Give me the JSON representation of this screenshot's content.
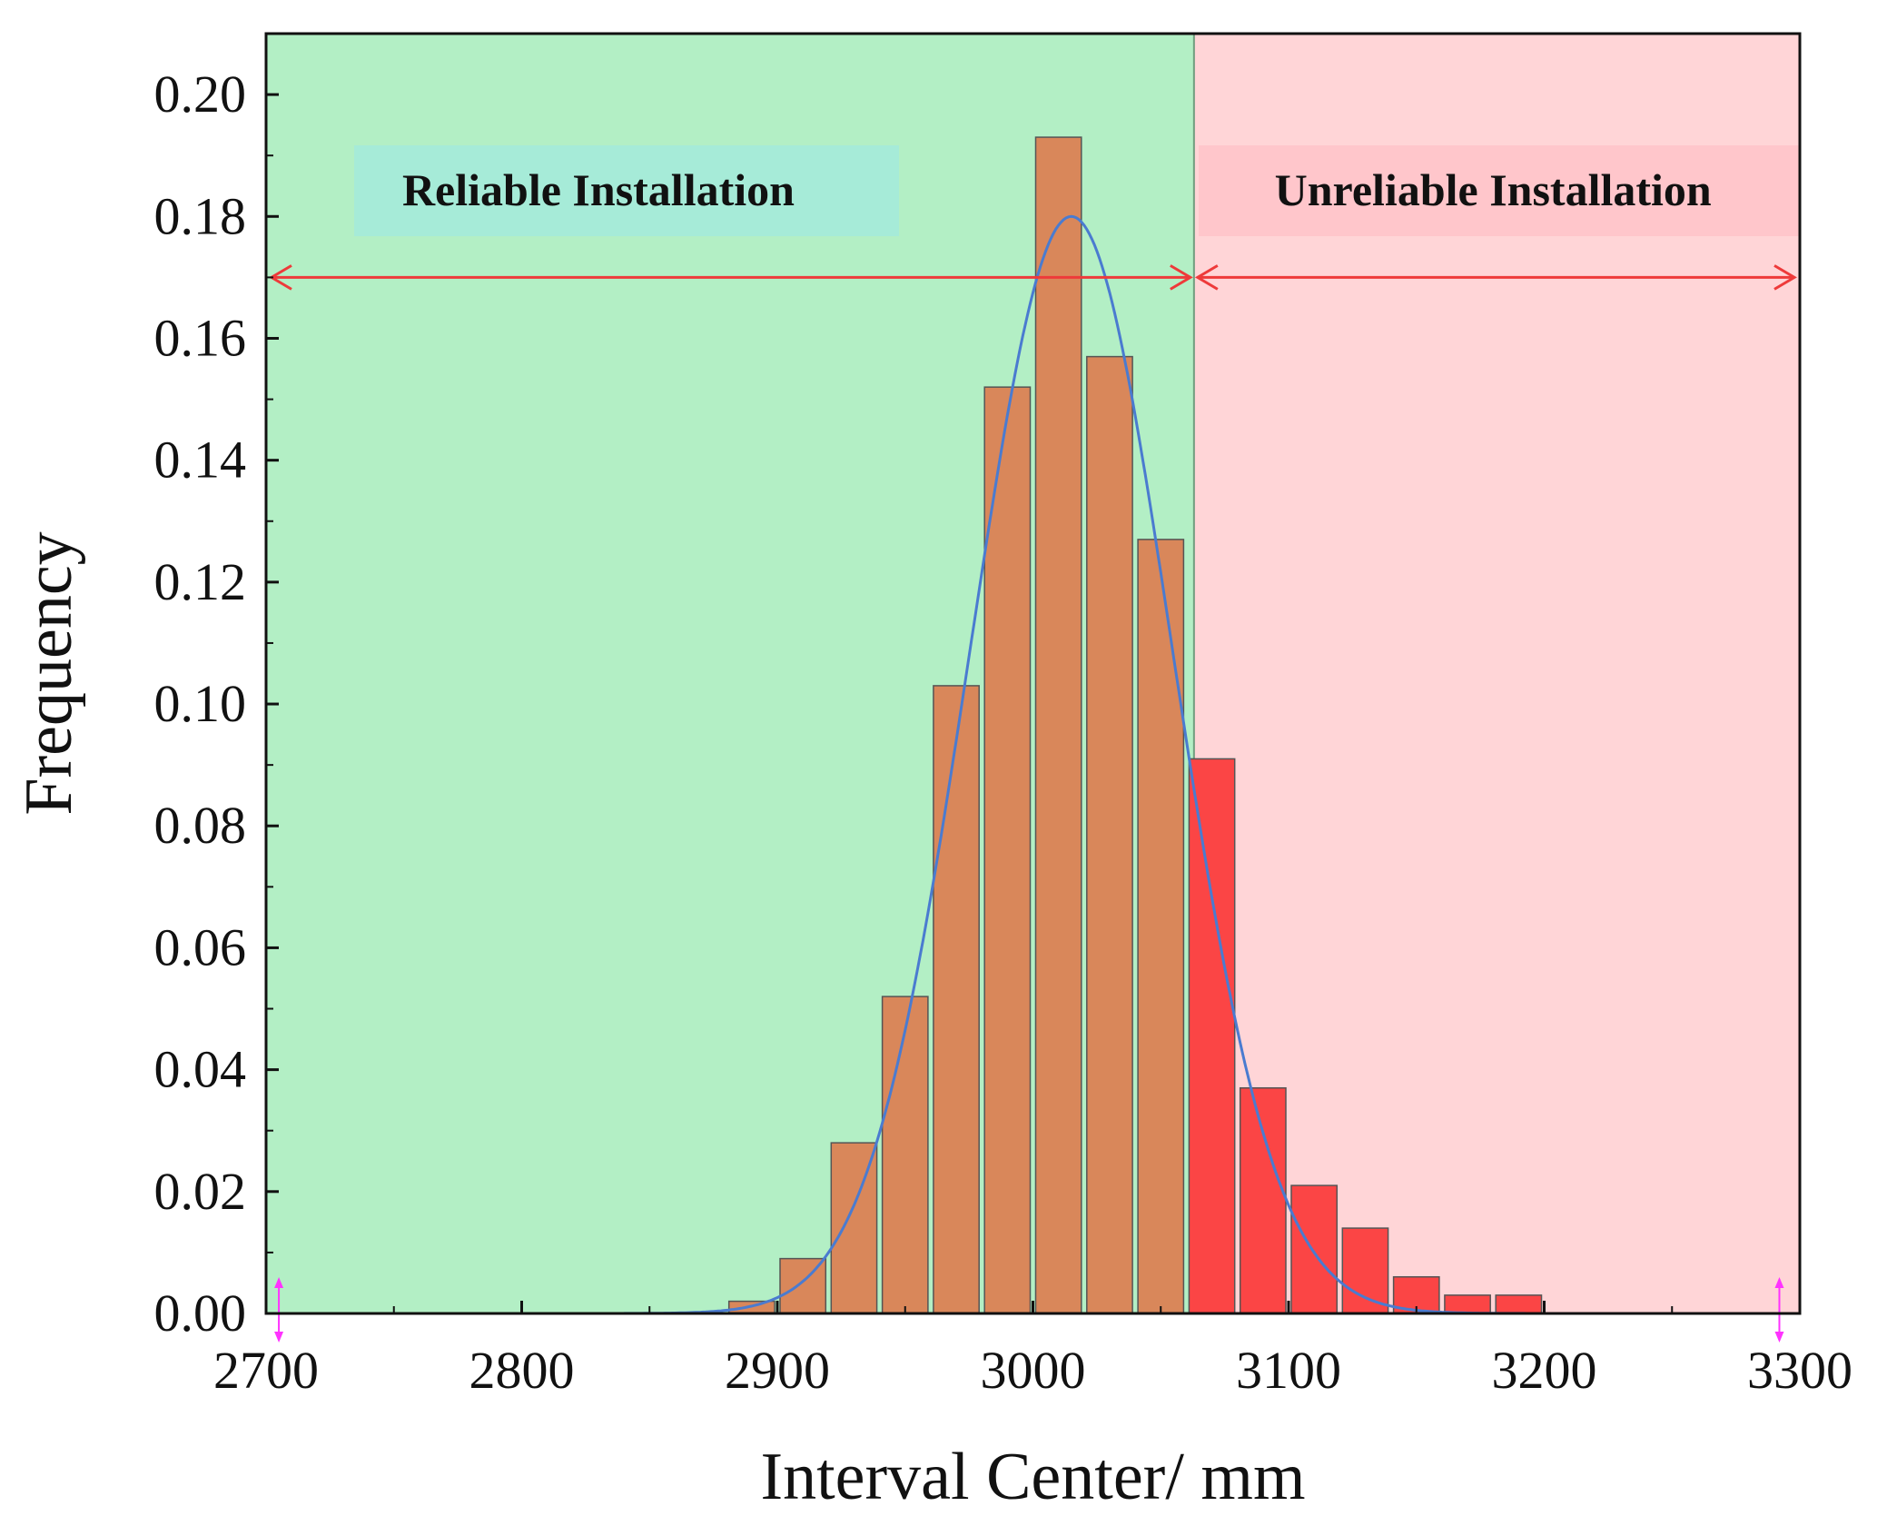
{
  "chart_data": {
    "type": "bar",
    "title": "",
    "xlabel": "Interval Center/ mm",
    "ylabel": "Frequency",
    "xlim": [
      2700,
      3300
    ],
    "ylim": [
      0,
      0.21
    ],
    "x_ticks": [
      "2700",
      "2800",
      "2900",
      "3000",
      "3100",
      "3200",
      "3300"
    ],
    "y_ticks": [
      "0.00",
      "0.02",
      "0.04",
      "0.06",
      "0.08",
      "0.10",
      "0.12",
      "0.14",
      "0.16",
      "0.18",
      "0.20"
    ],
    "bin_width": 20,
    "bins": [
      {
        "center": 2890,
        "value": 0.002,
        "region": "reliable"
      },
      {
        "center": 2910,
        "value": 0.009,
        "region": "reliable"
      },
      {
        "center": 2930,
        "value": 0.028,
        "region": "reliable"
      },
      {
        "center": 2950,
        "value": 0.052,
        "region": "reliable"
      },
      {
        "center": 2970,
        "value": 0.103,
        "region": "reliable"
      },
      {
        "center": 2990,
        "value": 0.152,
        "region": "reliable"
      },
      {
        "center": 3010,
        "value": 0.193,
        "region": "reliable"
      },
      {
        "center": 3030,
        "value": 0.157,
        "region": "reliable"
      },
      {
        "center": 3050,
        "value": 0.127,
        "region": "reliable"
      },
      {
        "center": 3070,
        "value": 0.091,
        "region": "unreliable"
      },
      {
        "center": 3090,
        "value": 0.037,
        "region": "unreliable"
      },
      {
        "center": 3110,
        "value": 0.021,
        "region": "unreliable"
      },
      {
        "center": 3130,
        "value": 0.014,
        "region": "unreliable"
      },
      {
        "center": 3150,
        "value": 0.006,
        "region": "unreliable"
      },
      {
        "center": 3170,
        "value": 0.003,
        "region": "unreliable"
      },
      {
        "center": 3190,
        "value": 0.003,
        "region": "unreliable"
      }
    ],
    "fit_curve": {
      "type": "normal",
      "mean": 3015,
      "sd": 39.5,
      "peak": 0.18,
      "x_range": [
        2840,
        3295
      ]
    },
    "threshold": 3063,
    "regions": [
      {
        "name": "Reliable Installation",
        "from": 2700,
        "to": 3063,
        "label_x": 2830
      },
      {
        "name": "Unreliable Installation",
        "from": 3063,
        "to": 3300,
        "label_x": 3180
      }
    ],
    "arrow_y": 0.17,
    "marker_x": [
      2705,
      3292
    ],
    "colors": {
      "reliable_bg": "#b3efc5",
      "unreliable_bg": "#ffd5d7",
      "reliable_label_bg": "#a6ebd8",
      "unreliable_label_bg": "#ffc6cb",
      "bar_reliable": "#d9875a",
      "bar_unreliable": "#fb4545",
      "bar_edge": "#555555",
      "curve": "#4a7bd0",
      "arrow": "#ee3a3a",
      "marker": "#ff33ff",
      "threshold_line": "#6f9e7e"
    }
  }
}
